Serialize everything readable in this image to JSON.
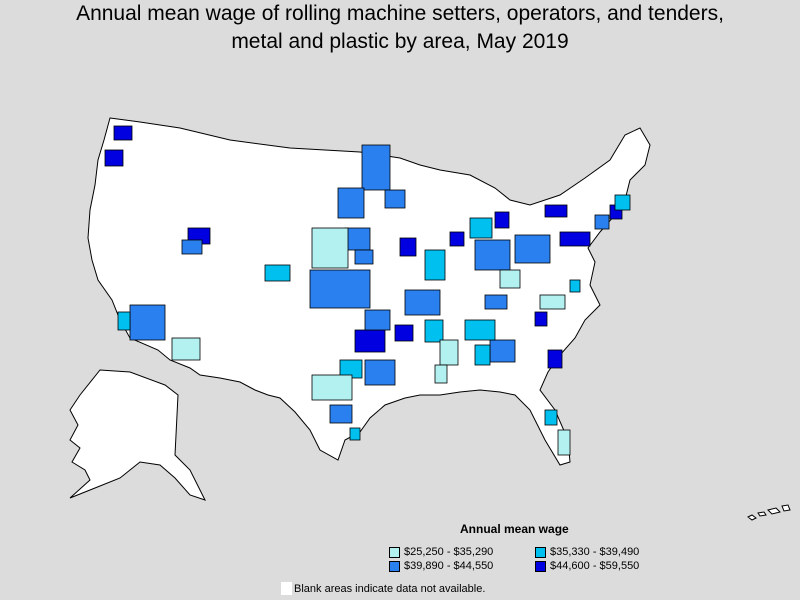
{
  "title": {
    "line1": "Annual mean wage of rolling machine setters, operators, and tenders,",
    "line2": "metal and plastic by area, May 2019"
  },
  "legend": {
    "title": "Annual mean wage",
    "items": [
      {
        "label": "$25,250 - $35,290",
        "color": "#b3f0f0"
      },
      {
        "label": "$35,330 - $39,490",
        "color": "#00c0f0"
      },
      {
        "label": "$39,890 - $44,550",
        "color": "#2b80f0"
      },
      {
        "label": "$44,600 - $59,550",
        "color": "#0000e0"
      }
    ]
  },
  "note": "Blank areas indicate data not available."
}
